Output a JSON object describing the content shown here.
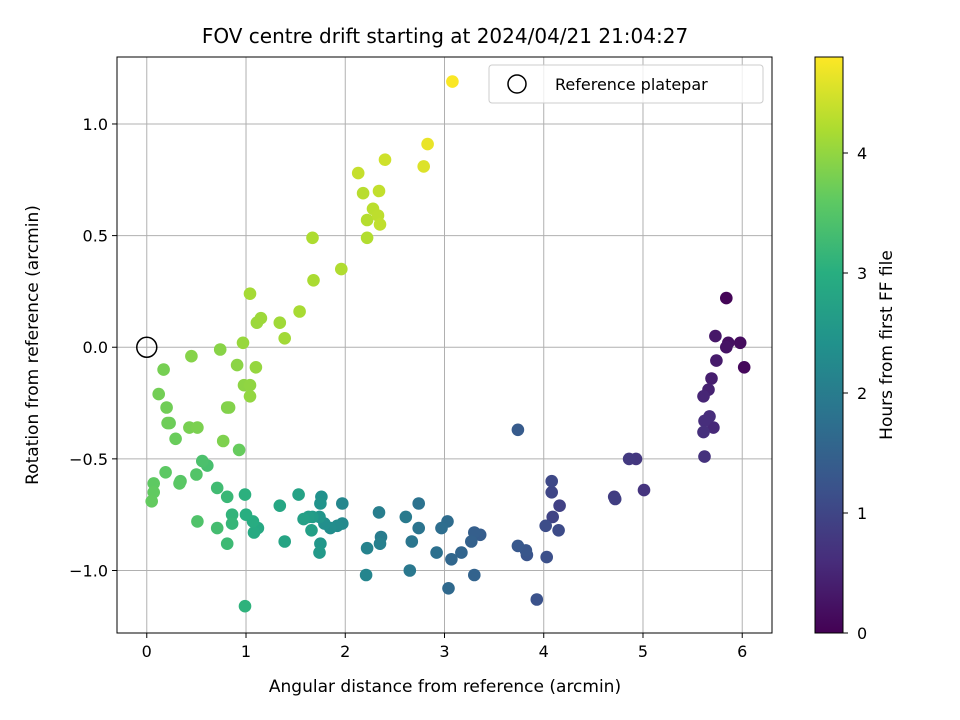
{
  "chart_data": {
    "type": "scatter",
    "title": "FOV centre drift starting at 2024/04/21 21:04:27",
    "xlabel": "Angular distance from reference (arcmin)",
    "ylabel": "Rotation from reference (arcmin)",
    "xlim": [
      -0.3,
      6.3
    ],
    "ylim": [
      -1.28,
      1.3
    ],
    "xticks": [
      0,
      1,
      2,
      3,
      4,
      5,
      6
    ],
    "xtick_labels": [
      "0",
      "1",
      "2",
      "3",
      "4",
      "5",
      "6"
    ],
    "yticks": [
      -1.0,
      -0.5,
      0.0,
      0.5,
      1.0
    ],
    "ytick_labels": [
      "−1.0",
      "−0.5",
      "0.0",
      "0.5",
      "1.0"
    ],
    "grid": true,
    "colormap": "viridis",
    "colorbar": {
      "label": "Hours from first FF file",
      "range": [
        0,
        4.8
      ],
      "ticks": [
        0,
        1,
        2,
        3,
        4
      ],
      "tick_labels": [
        "0",
        "1",
        "2",
        "3",
        "4"
      ]
    },
    "legend": {
      "entries": [
        "Reference platepar"
      ],
      "location": "upper-right"
    },
    "reference": {
      "x": 0.0,
      "y": 0.0
    },
    "series": [
      {
        "points": [
          [
            5.84,
            0.22,
            0.05
          ],
          [
            6.02,
            -0.09,
            0.1
          ],
          [
            5.98,
            0.02,
            0.15
          ],
          [
            5.86,
            0.02,
            0.2
          ],
          [
            5.84,
            0.0,
            0.25
          ],
          [
            5.73,
            0.05,
            0.3
          ],
          [
            5.74,
            -0.06,
            0.35
          ],
          [
            5.69,
            -0.14,
            0.4
          ],
          [
            5.66,
            -0.19,
            0.45
          ],
          [
            5.61,
            -0.22,
            0.5
          ],
          [
            5.71,
            -0.36,
            0.55
          ],
          [
            5.67,
            -0.31,
            0.6
          ],
          [
            5.62,
            -0.33,
            0.62
          ],
          [
            5.61,
            -0.38,
            0.65
          ],
          [
            5.62,
            -0.49,
            0.68
          ],
          [
            5.01,
            -0.64,
            0.72
          ],
          [
            4.93,
            -0.5,
            0.76
          ],
          [
            4.86,
            -0.5,
            0.8
          ],
          [
            4.71,
            -0.67,
            0.84
          ],
          [
            4.72,
            -0.68,
            0.88
          ],
          [
            4.16,
            -0.71,
            0.92
          ],
          [
            4.09,
            -0.76,
            0.96
          ],
          [
            4.08,
            -0.65,
            1.0
          ],
          [
            4.08,
            -0.6,
            1.04
          ],
          [
            4.15,
            -0.82,
            1.08
          ],
          [
            4.02,
            -0.8,
            1.12
          ],
          [
            4.03,
            -0.94,
            1.16
          ],
          [
            3.93,
            -1.13,
            1.2
          ],
          [
            3.83,
            -0.93,
            1.24
          ],
          [
            3.82,
            -0.91,
            1.28
          ],
          [
            3.74,
            -0.89,
            1.32
          ],
          [
            3.74,
            -0.37,
            1.36
          ],
          [
            3.36,
            -0.84,
            1.4
          ],
          [
            3.3,
            -0.83,
            1.44
          ],
          [
            3.27,
            -0.87,
            1.48
          ],
          [
            3.3,
            -1.02,
            1.52
          ],
          [
            3.17,
            -0.92,
            1.56
          ],
          [
            3.07,
            -0.95,
            1.6
          ],
          [
            3.04,
            -1.08,
            1.64
          ],
          [
            3.03,
            -0.78,
            1.68
          ],
          [
            2.97,
            -0.81,
            1.72
          ],
          [
            2.92,
            -0.92,
            1.76
          ],
          [
            2.74,
            -0.7,
            1.8
          ],
          [
            2.74,
            -0.81,
            1.84
          ],
          [
            2.67,
            -0.87,
            1.88
          ],
          [
            2.65,
            -1.0,
            1.92
          ],
          [
            2.61,
            -0.76,
            1.96
          ],
          [
            2.36,
            -0.85,
            2.0
          ],
          [
            2.34,
            -0.74,
            2.04
          ],
          [
            2.35,
            -0.88,
            2.08
          ],
          [
            2.22,
            -0.9,
            2.12
          ],
          [
            2.21,
            -1.02,
            2.16
          ],
          [
            1.97,
            -0.7,
            2.2
          ],
          [
            1.97,
            -0.79,
            2.24
          ],
          [
            1.92,
            -0.8,
            2.28
          ],
          [
            1.85,
            -0.81,
            2.32
          ],
          [
            1.79,
            -0.79,
            2.36
          ],
          [
            1.76,
            -0.67,
            2.4
          ],
          [
            1.75,
            -0.7,
            2.44
          ],
          [
            1.74,
            -0.76,
            2.48
          ],
          [
            1.75,
            -0.88,
            2.52
          ],
          [
            1.74,
            -0.92,
            2.56
          ],
          [
            1.67,
            -0.76,
            2.6
          ],
          [
            1.63,
            -0.76,
            2.64
          ],
          [
            1.66,
            -0.82,
            2.68
          ],
          [
            1.58,
            -0.77,
            2.72
          ],
          [
            1.53,
            -0.66,
            2.76
          ],
          [
            1.39,
            -0.87,
            2.8
          ],
          [
            1.34,
            -0.71,
            2.84
          ],
          [
            1.12,
            -0.81,
            2.88
          ],
          [
            1.08,
            -0.83,
            2.92
          ],
          [
            1.07,
            -0.78,
            2.96
          ],
          [
            1.0,
            -0.75,
            3.0
          ],
          [
            0.99,
            -0.66,
            3.04
          ],
          [
            0.99,
            -1.16,
            3.08
          ],
          [
            0.86,
            -0.75,
            3.12
          ],
          [
            0.86,
            -0.79,
            3.16
          ],
          [
            0.81,
            -0.67,
            3.2
          ],
          [
            0.81,
            -0.88,
            3.24
          ],
          [
            0.71,
            -0.63,
            3.28
          ],
          [
            0.71,
            -0.81,
            3.32
          ],
          [
            0.61,
            -0.53,
            3.36
          ],
          [
            0.56,
            -0.51,
            3.4
          ],
          [
            0.51,
            -0.78,
            3.44
          ],
          [
            0.5,
            -0.57,
            3.48
          ],
          [
            0.34,
            -0.6,
            3.52
          ],
          [
            0.33,
            -0.61,
            3.56
          ],
          [
            0.19,
            -0.56,
            3.58
          ],
          [
            0.07,
            -0.61,
            3.6
          ],
          [
            0.07,
            -0.65,
            3.62
          ],
          [
            0.05,
            -0.69,
            3.64
          ],
          [
            0.93,
            -0.46,
            3.66
          ],
          [
            0.29,
            -0.41,
            3.68
          ],
          [
            0.23,
            -0.34,
            3.7
          ],
          [
            0.21,
            -0.34,
            3.72
          ],
          [
            0.2,
            -0.27,
            3.74
          ],
          [
            0.12,
            -0.21,
            3.76
          ],
          [
            0.17,
            -0.1,
            3.78
          ],
          [
            0.43,
            -0.36,
            3.8
          ],
          [
            0.51,
            -0.36,
            3.82
          ],
          [
            0.77,
            -0.42,
            3.84
          ],
          [
            0.81,
            -0.27,
            3.86
          ],
          [
            0.83,
            -0.27,
            3.88
          ],
          [
            0.45,
            -0.04,
            3.9
          ],
          [
            0.74,
            -0.01,
            3.92
          ],
          [
            0.91,
            -0.08,
            3.94
          ],
          [
            0.98,
            -0.17,
            3.96
          ],
          [
            1.04,
            -0.17,
            3.98
          ],
          [
            1.04,
            -0.22,
            4.0
          ],
          [
            1.1,
            -0.09,
            4.02
          ],
          [
            0.97,
            0.02,
            4.04
          ],
          [
            1.11,
            0.11,
            4.06
          ],
          [
            1.15,
            0.13,
            4.08
          ],
          [
            1.34,
            0.11,
            4.1
          ],
          [
            1.39,
            0.04,
            4.12
          ],
          [
            1.04,
            0.24,
            4.14
          ],
          [
            1.54,
            0.16,
            4.16
          ],
          [
            1.68,
            0.3,
            4.18
          ],
          [
            1.67,
            0.49,
            4.2
          ],
          [
            1.96,
            0.35,
            4.22
          ],
          [
            2.22,
            0.49,
            4.24
          ],
          [
            2.22,
            0.57,
            4.26
          ],
          [
            2.18,
            0.69,
            4.28
          ],
          [
            2.28,
            0.62,
            4.3
          ],
          [
            2.33,
            0.59,
            4.32
          ],
          [
            2.35,
            0.55,
            4.34
          ],
          [
            2.34,
            0.7,
            4.36
          ],
          [
            2.13,
            0.78,
            4.38
          ],
          [
            2.4,
            0.84,
            4.45
          ],
          [
            2.79,
            0.81,
            4.55
          ],
          [
            2.83,
            0.91,
            4.65
          ],
          [
            3.08,
            1.19,
            4.78
          ]
        ]
      }
    ]
  }
}
